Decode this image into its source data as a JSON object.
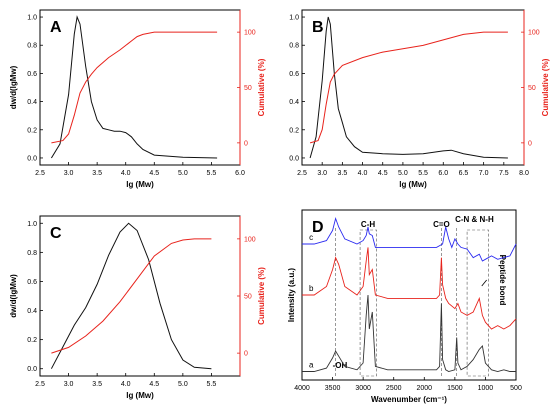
{
  "colors": {
    "black": "#111111",
    "red": "#e8231c",
    "blue": "#2b2bf0",
    "gray": "#555555"
  },
  "chart_data": [
    {
      "panel": "A",
      "type": "line",
      "xlabel": "lg (Mw)",
      "ylabel": "dw/d(lgMw)",
      "ylabel_right": "Cumulative (%)",
      "xlim": [
        2.5,
        6.0
      ],
      "ylim": [
        -0.05,
        1.05
      ],
      "ylim_right": [
        -20,
        120
      ],
      "x_ticks": [
        "2.5",
        "3.0",
        "3.5",
        "4.0",
        "4.5",
        "5.0",
        "5.5",
        "6.0"
      ],
      "y_ticks": [
        "0.0",
        "0.2",
        "0.4",
        "0.6",
        "0.8",
        "1.0"
      ],
      "y_ticks_right": [
        "0",
        "50",
        "100"
      ],
      "series": [
        {
          "axis": "left",
          "color": "#111111",
          "x": [
            2.7,
            2.85,
            3.0,
            3.1,
            3.15,
            3.2,
            3.3,
            3.4,
            3.5,
            3.6,
            3.7,
            3.8,
            3.9,
            4.0,
            4.1,
            4.2,
            4.3,
            4.5,
            5.0,
            5.6
          ],
          "y": [
            0.0,
            0.1,
            0.45,
            0.88,
            1.0,
            0.95,
            0.65,
            0.4,
            0.27,
            0.21,
            0.2,
            0.19,
            0.19,
            0.18,
            0.15,
            0.1,
            0.06,
            0.02,
            0.005,
            0.0
          ]
        },
        {
          "axis": "right",
          "color": "#e8231c",
          "x": [
            2.7,
            2.9,
            3.0,
            3.1,
            3.2,
            3.3,
            3.4,
            3.5,
            3.7,
            3.9,
            4.1,
            4.2,
            4.3,
            4.5,
            5.0,
            5.6
          ],
          "y": [
            0,
            2,
            8,
            25,
            45,
            55,
            62,
            68,
            77,
            84,
            92,
            96,
            98,
            100,
            100,
            100
          ]
        }
      ]
    },
    {
      "panel": "B",
      "type": "line",
      "xlabel": "lg (Mw)",
      "ylabel": "",
      "ylabel_right": "Cumulative (%)",
      "xlim": [
        2.5,
        8.0
      ],
      "ylim": [
        -0.05,
        1.05
      ],
      "ylim_right": [
        -20,
        120
      ],
      "x_ticks": [
        "2.5",
        "3.0",
        "3.5",
        "4.0",
        "4.5",
        "5.0",
        "5.5",
        "6.0",
        "6.5",
        "7.0",
        "7.5",
        "8.0"
      ],
      "y_ticks": [
        "0.0",
        "0.2",
        "0.4",
        "0.6",
        "0.8",
        "1.0"
      ],
      "y_ticks_right": [
        "0",
        "50",
        "100"
      ],
      "series": [
        {
          "axis": "left",
          "color": "#111111",
          "x": [
            2.7,
            2.85,
            3.0,
            3.1,
            3.15,
            3.2,
            3.3,
            3.4,
            3.5,
            3.6,
            3.8,
            4.0,
            4.5,
            5.0,
            5.5,
            6.0,
            6.2,
            6.5,
            7.0,
            7.6
          ],
          "y": [
            0.0,
            0.15,
            0.55,
            0.9,
            1.0,
            0.95,
            0.6,
            0.35,
            0.25,
            0.15,
            0.08,
            0.04,
            0.03,
            0.025,
            0.03,
            0.05,
            0.055,
            0.03,
            0.005,
            0.0
          ]
        },
        {
          "axis": "right",
          "color": "#e8231c",
          "x": [
            2.7,
            2.9,
            3.0,
            3.1,
            3.2,
            3.3,
            3.5,
            4.0,
            4.5,
            5.0,
            5.5,
            6.0,
            6.5,
            7.0,
            7.6
          ],
          "y": [
            0,
            2,
            12,
            35,
            55,
            62,
            70,
            77,
            82,
            85,
            88,
            93,
            98,
            100,
            100
          ]
        }
      ]
    },
    {
      "panel": "C",
      "type": "line",
      "xlabel": "lg (Mw)",
      "ylabel": "dw/d(lgMw)",
      "ylabel_right": "Cumulative (%)",
      "xlim": [
        2.5,
        6.0
      ],
      "ylim": [
        -0.05,
        1.05
      ],
      "ylim_right": [
        -20,
        120
      ],
      "x_ticks": [
        "2.5",
        "3.0",
        "3.5",
        "4.0",
        "4.5",
        "5.0",
        "5.5"
      ],
      "y_ticks": [
        "0.0",
        "0.2",
        "0.4",
        "0.6",
        "0.8",
        "1.0"
      ],
      "y_ticks_right": [
        "0",
        "50",
        "100"
      ],
      "series": [
        {
          "axis": "left",
          "color": "#111111",
          "x": [
            2.7,
            2.9,
            3.1,
            3.3,
            3.5,
            3.7,
            3.9,
            4.05,
            4.2,
            4.4,
            4.6,
            4.8,
            5.0,
            5.2,
            5.5
          ],
          "y": [
            0.0,
            0.15,
            0.3,
            0.42,
            0.58,
            0.78,
            0.94,
            1.0,
            0.95,
            0.75,
            0.45,
            0.2,
            0.06,
            0.01,
            0.0
          ]
        },
        {
          "axis": "right",
          "color": "#e8231c",
          "x": [
            2.7,
            3.0,
            3.3,
            3.6,
            3.9,
            4.2,
            4.5,
            4.8,
            5.0,
            5.2,
            5.5
          ],
          "y": [
            0,
            5,
            15,
            28,
            45,
            65,
            85,
            96,
            99,
            100,
            100
          ]
        }
      ]
    },
    {
      "panel": "D",
      "type": "line",
      "xlabel": "Wavenumber (cm⁻¹)",
      "ylabel": "Intensity (a.u.)",
      "xlim": [
        4000,
        500
      ],
      "x_ticks": [
        "4000",
        "3500",
        "3000",
        "2500",
        "2000",
        "1500",
        "1000",
        "500"
      ],
      "annotations": [
        "C-H",
        "C=O",
        "C-N & N-H",
        "Peptide bond",
        "-OH"
      ],
      "series": [
        {
          "name": "c",
          "color": "#2b2bf0",
          "x": [
            4000,
            3800,
            3600,
            3500,
            3450,
            3400,
            3300,
            3100,
            3000,
            2950,
            2920,
            2900,
            2850,
            2800,
            2600,
            2400,
            2200,
            2000,
            1800,
            1700,
            1650,
            1600,
            1550,
            1500,
            1450,
            1400,
            1300,
            1200,
            1100,
            1050,
            1000,
            900,
            800,
            700,
            600,
            500
          ],
          "y": [
            0.8,
            0.8,
            0.82,
            0.88,
            0.95,
            0.9,
            0.83,
            0.8,
            0.82,
            0.85,
            0.9,
            0.86,
            0.85,
            0.78,
            0.78,
            0.78,
            0.78,
            0.78,
            0.78,
            0.8,
            0.9,
            0.83,
            0.78,
            0.83,
            0.8,
            0.78,
            0.77,
            0.72,
            0.74,
            0.7,
            0.71,
            0.73,
            0.71,
            0.72,
            0.73,
            0.8
          ]
        },
        {
          "name": "b",
          "color": "#e8231c",
          "x": [
            4000,
            3800,
            3600,
            3500,
            3450,
            3400,
            3300,
            3100,
            3000,
            2950,
            2920,
            2900,
            2850,
            2800,
            2600,
            2400,
            2200,
            2000,
            1800,
            1750,
            1720,
            1700,
            1650,
            1600,
            1500,
            1450,
            1400,
            1300,
            1200,
            1100,
            1050,
            1000,
            900,
            800,
            700,
            600,
            500
          ],
          "y": [
            0.5,
            0.5,
            0.55,
            0.65,
            0.72,
            0.68,
            0.55,
            0.5,
            0.55,
            0.7,
            0.78,
            0.62,
            0.65,
            0.5,
            0.48,
            0.48,
            0.48,
            0.48,
            0.48,
            0.5,
            0.72,
            0.56,
            0.48,
            0.45,
            0.42,
            0.45,
            0.4,
            0.38,
            0.4,
            0.48,
            0.38,
            0.34,
            0.3,
            0.32,
            0.3,
            0.32,
            0.36
          ]
        },
        {
          "name": "a",
          "color": "#333333",
          "x": [
            4000,
            3800,
            3600,
            3500,
            3450,
            3400,
            3300,
            3100,
            3000,
            2950,
            2920,
            2900,
            2850,
            2800,
            2600,
            2400,
            2200,
            2000,
            1800,
            1750,
            1720,
            1700,
            1650,
            1600,
            1500,
            1470,
            1450,
            1400,
            1300,
            1200,
            1100,
            1050,
            1000,
            900,
            800,
            700,
            600,
            500
          ],
          "y": [
            0.05,
            0.05,
            0.07,
            0.13,
            0.17,
            0.14,
            0.08,
            0.06,
            0.1,
            0.38,
            0.5,
            0.3,
            0.4,
            0.08,
            0.06,
            0.06,
            0.06,
            0.06,
            0.06,
            0.08,
            0.45,
            0.12,
            0.06,
            0.05,
            0.06,
            0.25,
            0.1,
            0.06,
            0.08,
            0.12,
            0.18,
            0.2,
            0.1,
            0.06,
            0.05,
            0.06,
            0.05,
            0.05
          ]
        }
      ]
    }
  ]
}
